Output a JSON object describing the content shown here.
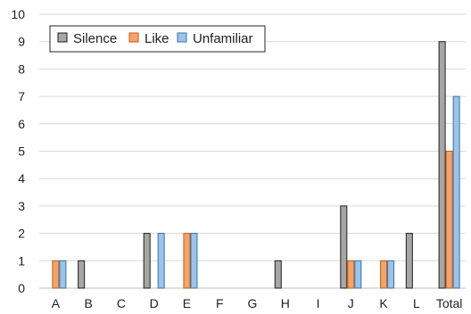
{
  "chart_data": {
    "type": "bar",
    "categories": [
      "A",
      "B",
      "C",
      "D",
      "E",
      "F",
      "G",
      "H",
      "I",
      "J",
      "K",
      "L",
      "Total"
    ],
    "series": [
      {
        "name": "Silence",
        "color": "#a6a6a6",
        "edge": "#1f1f1f",
        "values": [
          0,
          1,
          0,
          2,
          0,
          0,
          0,
          1,
          0,
          3,
          0,
          2,
          9
        ]
      },
      {
        "name": "Like",
        "color": "#f4a46b",
        "edge": "#c55a11",
        "values": [
          1,
          0,
          0,
          0,
          2,
          0,
          0,
          0,
          0,
          1,
          1,
          0,
          5
        ]
      },
      {
        "name": "Unfamiliar",
        "color": "#9dc3e6",
        "edge": "#2e75b6",
        "values": [
          1,
          0,
          0,
          2,
          2,
          0,
          0,
          0,
          0,
          1,
          1,
          0,
          7
        ]
      }
    ],
    "yticks": [
      "0",
      "1",
      "2",
      "3",
      "4",
      "5",
      "6",
      "7",
      "8",
      "9",
      "10"
    ],
    "ylim": [
      0,
      10
    ],
    "grid": true,
    "legend_position": "top-left"
  }
}
